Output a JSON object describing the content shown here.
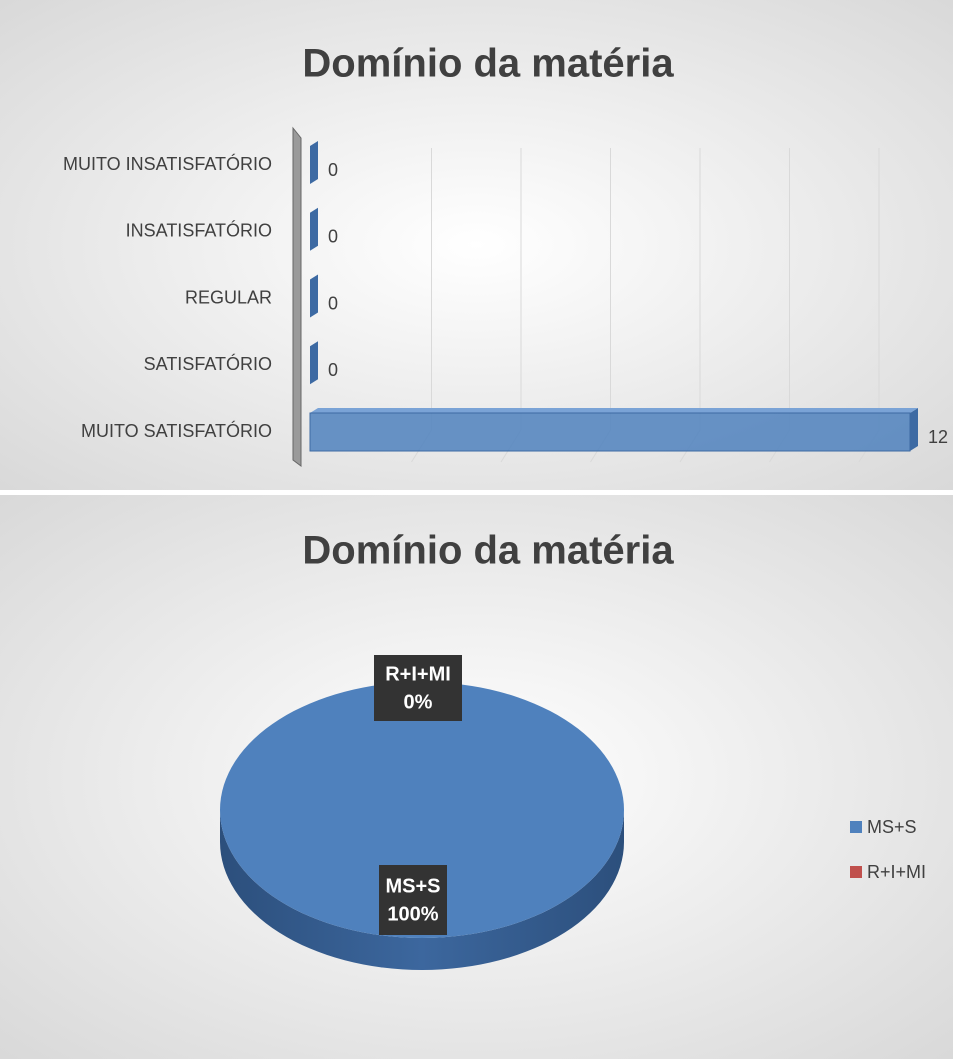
{
  "chart_data": [
    {
      "type": "bar",
      "orientation": "horizontal",
      "title": "Domínio da matéria",
      "categories": [
        "MUITO INSATISFATÓRIO",
        "INSATISFATÓRIO",
        "REGULAR",
        "SATISFATÓRIO",
        "MUITO SATISFATÓRIO"
      ],
      "values": [
        0,
        0,
        0,
        0,
        12
      ],
      "color": "#4f81bd",
      "xlim": [
        0,
        12
      ],
      "grid": true
    },
    {
      "type": "pie",
      "title": "Domínio da matéria",
      "categories": [
        "MS+S",
        "R+I+MI"
      ],
      "values": [
        100,
        0
      ],
      "value_labels": [
        "100%",
        "0%"
      ],
      "colors": [
        "#4f81bd",
        "#c0504d"
      ],
      "legend": "right"
    }
  ]
}
